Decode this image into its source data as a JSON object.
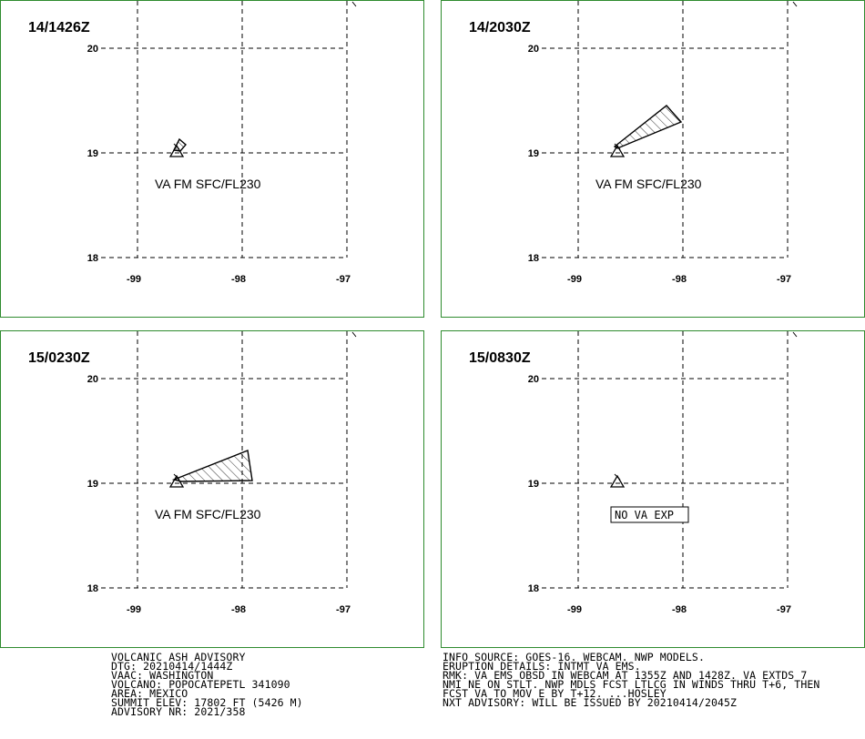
{
  "panels": [
    {
      "id": "p0",
      "time_label": "14/1426Z",
      "lat_ticks": [
        "20",
        "19",
        "18"
      ],
      "lon_ticks": [
        "-99",
        "-98",
        "-97"
      ],
      "va_text": "VA FM SFC/FL230",
      "ash_cloud": "small plume NE of vent",
      "no_va": null
    },
    {
      "id": "p1",
      "time_label": "14/2030Z",
      "lat_ticks": [
        "20",
        "19",
        "18"
      ],
      "lon_ticks": [
        "-99",
        "-98",
        "-97"
      ],
      "va_text": "VA FM SFC/FL230",
      "ash_cloud": "wedge extending NE",
      "no_va": null
    },
    {
      "id": "p2",
      "time_label": "15/0230Z",
      "lat_ticks": [
        "20",
        "19",
        "18"
      ],
      "lon_ticks": [
        "-99",
        "-98",
        "-97"
      ],
      "va_text": "VA FM SFC/FL230",
      "ash_cloud": "wedge extending E",
      "no_va": null
    },
    {
      "id": "p3",
      "time_label": "15/0830Z",
      "lat_ticks": [
        "20",
        "19",
        "18"
      ],
      "lon_ticks": [
        "-99",
        "-98",
        "-97"
      ],
      "va_text": null,
      "ash_cloud": null,
      "no_va": "NO VA EXP"
    }
  ],
  "advisory_left": [
    "VOLCANIC ASH ADVISORY",
    "DTG: 20210414/1444Z",
    "VAAC: WASHINGTON",
    "VOLCANO: POPOCATEPETL 341090",
    "AREA: MEXICO",
    "SUMMIT ELEV: 17802 FT (5426 M)",
    "ADVISORY NR: 2021/358"
  ],
  "advisory_right": [
    "INFO SOURCE: GOES-16. WEBCAM. NWP MODELS.",
    "ERUPTION DETAILS: INTMT VA EMS.",
    "RMK: VA EMS OBSD IN WEBCAM AT 1355Z AND 1428Z. VA EXTDS 7",
    "NMI NE ON STLT. NWP MDLS FCST LTLCG IN WINDS THRU T+6, THEN",
    "FCST VA TO MOV E BY T+12. ...HOSLEY",
    "NXT ADVISORY: WILL BE ISSUED BY 20210414/2045Z"
  ],
  "colors": {
    "panel_border": "#2e8b2e",
    "ink": "#000000"
  },
  "icons": {
    "volcano": "volcano-triangle-icon"
  }
}
